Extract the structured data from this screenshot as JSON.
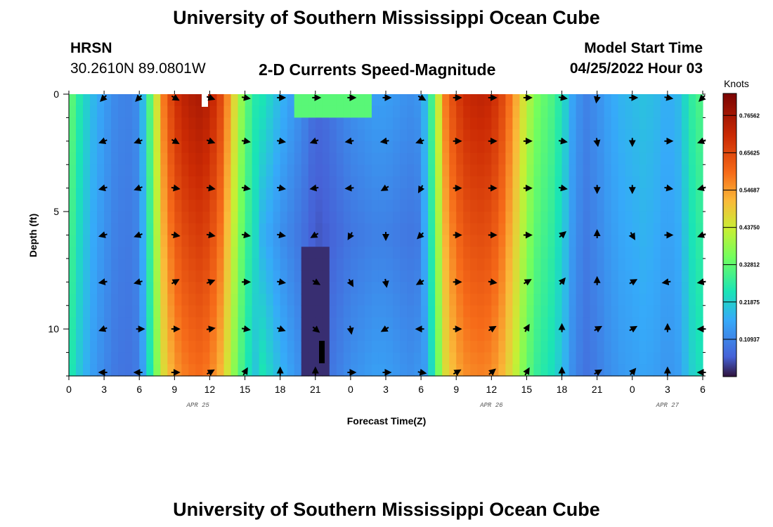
{
  "page": {
    "title": "University of Southern Mississippi Ocean Cube",
    "second_title": "University of Southern Mississippi Ocean Cube",
    "station": "HRSN",
    "coordinates": "30.2610N  89.0801W",
    "subtitle": "2-D Currents Speed-Magnitude",
    "model_label": "Model Start Time",
    "model_time": "04/25/2022 Hour 03"
  },
  "chart_data": {
    "type": "heatmap",
    "title": "2-D Currents Speed-Magnitude",
    "xlabel": "Forecast Time(Z)",
    "ylabel": "Depth (ft)",
    "x_unit_hours_start": 0,
    "x_range_hours": [
      0,
      54
    ],
    "ylim": [
      0,
      12
    ],
    "y_ticks": [
      "0",
      "5",
      "10"
    ],
    "y_tick_values": [
      0,
      5,
      10
    ],
    "x_tick_labels": [
      "0",
      "3",
      "6",
      "9",
      "12",
      "15",
      "18",
      "21",
      "0",
      "3",
      "6",
      "9",
      "12",
      "15",
      "18",
      "21",
      "0",
      "3",
      "6"
    ],
    "date_labels": [
      {
        "text": "APR 25",
        "hour": 11
      },
      {
        "text": "APR 26",
        "hour": 36
      },
      {
        "text": "APR 27",
        "hour": 51
      }
    ],
    "colorbar": {
      "label": "Knots",
      "min": 0,
      "max": 0.83,
      "tick_values": [
        0.10937,
        0.21875,
        0.32812,
        0.4375,
        0.54687,
        0.65625,
        0.76562
      ],
      "tick_labels": [
        "0.10937",
        "0.21875",
        "0.32812",
        "0.43750",
        "0.54687",
        "0.65625",
        "0.76562"
      ]
    },
    "speed_profile_knots": [
      {
        "hour": 0,
        "speed": 0.33
      },
      {
        "hour": 1,
        "speed": 0.24
      },
      {
        "hour": 2,
        "speed": 0.18
      },
      {
        "hour": 3,
        "speed": 0.14
      },
      {
        "hour": 4,
        "speed": 0.11
      },
      {
        "hour": 5,
        "speed": 0.1
      },
      {
        "hour": 6,
        "speed": 0.12
      },
      {
        "hour": 7,
        "speed": 0.32
      },
      {
        "hour": 8,
        "speed": 0.55
      },
      {
        "hour": 9,
        "speed": 0.66
      },
      {
        "hour": 10,
        "speed": 0.7
      },
      {
        "hour": 11,
        "speed": 0.72
      },
      {
        "hour": 12,
        "speed": 0.7
      },
      {
        "hour": 13,
        "speed": 0.62
      },
      {
        "hour": 14,
        "speed": 0.46
      },
      {
        "hour": 15,
        "speed": 0.32
      },
      {
        "hour": 16,
        "speed": 0.24
      },
      {
        "hour": 17,
        "speed": 0.2
      },
      {
        "hour": 18,
        "speed": 0.16
      },
      {
        "hour": 19,
        "speed": 0.13
      },
      {
        "hour": 20,
        "speed": 0.1
      },
      {
        "hour": 21,
        "speed": 0.06
      },
      {
        "hour": 22,
        "speed": 0.07
      },
      {
        "hour": 23,
        "speed": 0.09
      },
      {
        "hour": 24,
        "speed": 0.11
      },
      {
        "hour": 25,
        "speed": 0.12
      },
      {
        "hour": 26,
        "speed": 0.13
      },
      {
        "hour": 27,
        "speed": 0.13
      },
      {
        "hour": 28,
        "speed": 0.12
      },
      {
        "hour": 29,
        "speed": 0.11
      },
      {
        "hour": 30,
        "speed": 0.12
      },
      {
        "hour": 31,
        "speed": 0.3
      },
      {
        "hour": 32,
        "speed": 0.55
      },
      {
        "hour": 33,
        "speed": 0.64
      },
      {
        "hour": 34,
        "speed": 0.68
      },
      {
        "hour": 35,
        "speed": 0.69
      },
      {
        "hour": 36,
        "speed": 0.68
      },
      {
        "hour": 37,
        "speed": 0.62
      },
      {
        "hour": 38,
        "speed": 0.52
      },
      {
        "hour": 39,
        "speed": 0.4
      },
      {
        "hour": 40,
        "speed": 0.33
      },
      {
        "hour": 41,
        "speed": 0.3
      },
      {
        "hour": 42,
        "speed": 0.24
      },
      {
        "hour": 43,
        "speed": 0.14
      },
      {
        "hour": 44,
        "speed": 0.1
      },
      {
        "hour": 45,
        "speed": 0.12
      },
      {
        "hour": 46,
        "speed": 0.15
      },
      {
        "hour": 47,
        "speed": 0.17
      },
      {
        "hour": 48,
        "speed": 0.18
      },
      {
        "hour": 49,
        "speed": 0.19
      },
      {
        "hour": 50,
        "speed": 0.18
      },
      {
        "hour": 51,
        "speed": 0.16
      },
      {
        "hour": 52,
        "speed": 0.18
      },
      {
        "hour": 53,
        "speed": 0.26
      },
      {
        "hour": 54,
        "speed": 0.3
      }
    ],
    "vector_hours": [
      3,
      6,
      9,
      12,
      15,
      18,
      21,
      24,
      27,
      30,
      33,
      36,
      39,
      42,
      45,
      48,
      51,
      54
    ],
    "vector_depths_ft": [
      0,
      2,
      4,
      6,
      8,
      10,
      12
    ],
    "vector_directions_deg_clockwise_from_east": [
      [
        135,
        135,
        30,
        20,
        10,
        0,
        0,
        0,
        0,
        30,
        0,
        0,
        0,
        10,
        100,
        0,
        10,
        135
      ],
      [
        160,
        160,
        30,
        20,
        10,
        10,
        160,
        170,
        170,
        160,
        0,
        0,
        0,
        10,
        80,
        90,
        0,
        160
      ],
      [
        165,
        160,
        10,
        10,
        10,
        10,
        170,
        175,
        150,
        120,
        0,
        0,
        0,
        10,
        90,
        90,
        10,
        165
      ],
      [
        165,
        160,
        10,
        10,
        10,
        10,
        150,
        120,
        90,
        135,
        0,
        0,
        0,
        320,
        270,
        60,
        0,
        160
      ],
      [
        170,
        165,
        330,
        340,
        0,
        10,
        30,
        60,
        80,
        150,
        0,
        10,
        330,
        310,
        270,
        330,
        170,
        170
      ],
      [
        160,
        0,
        0,
        350,
        10,
        20,
        40,
        80,
        150,
        180,
        0,
        330,
        300,
        270,
        330,
        330,
        270,
        180
      ],
      [
        180,
        180,
        0,
        330,
        300,
        270,
        270,
        0,
        0,
        10,
        330,
        320,
        300,
        270,
        330,
        310,
        270,
        180
      ]
    ]
  }
}
